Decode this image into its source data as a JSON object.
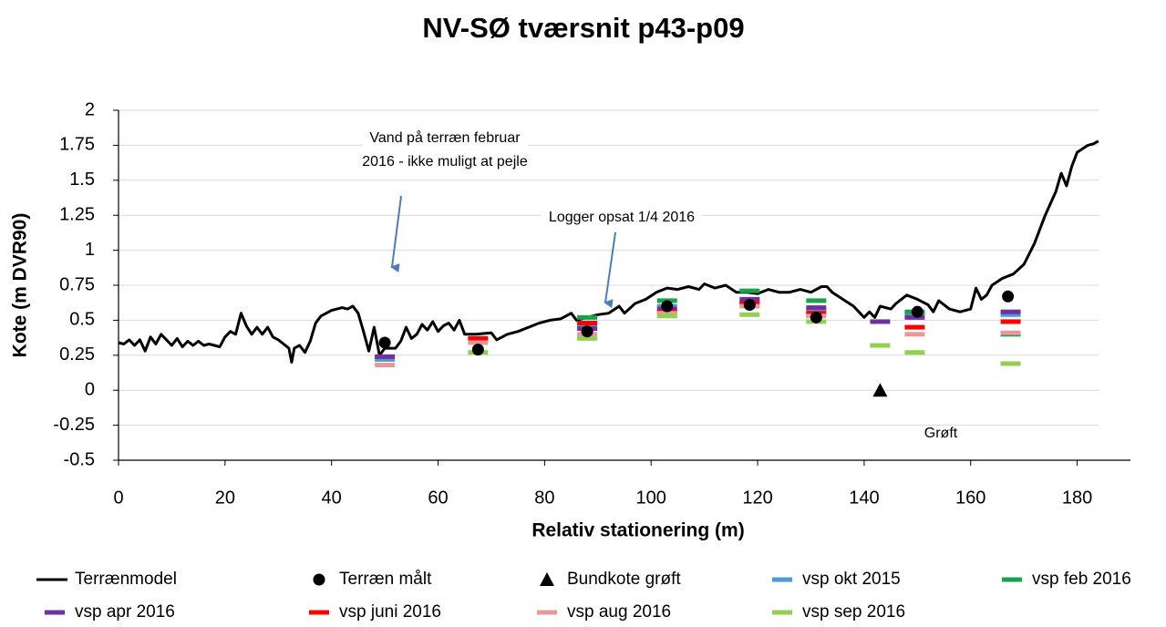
{
  "chart_data": {
    "type": "scatter",
    "title": "NV-SØ tværsnit p43-p09",
    "xlabel": "Relativ stationering (m)",
    "ylabel": "Kote (m DVR90)",
    "xlim": [
      0,
      190
    ],
    "ylim": [
      -0.5,
      2
    ],
    "xticks": [
      0,
      20,
      40,
      60,
      80,
      100,
      120,
      140,
      160,
      180
    ],
    "yticks": [
      -0.5,
      -0.25,
      0,
      0.25,
      0.5,
      0.75,
      1,
      1.25,
      1.5,
      1.75,
      2
    ],
    "grid": true,
    "legend": "bottom",
    "annotations": [
      {
        "text": [
          "Vand på terræn februar",
          "2016 - ikke muligt at pejle"
        ]
      },
      {
        "text": [
          "Logger opsat 1/4 2016"
        ]
      },
      {
        "text": [
          "Grøft"
        ]
      }
    ],
    "series": [
      {
        "name": "Terrænmodel",
        "color": "#000000",
        "marker": "line",
        "x": [
          0,
          1,
          2,
          3,
          4,
          5,
          6,
          7,
          8,
          9,
          10,
          11,
          12,
          13,
          14,
          15,
          16,
          17,
          18,
          19,
          20,
          21,
          22,
          23,
          24,
          25,
          26,
          27,
          28,
          29,
          30,
          31,
          32,
          32.5,
          33,
          34,
          35,
          36,
          37,
          38,
          40,
          42,
          43,
          44,
          45,
          46,
          47,
          48,
          49,
          50,
          52,
          53,
          54,
          55,
          56,
          57,
          58,
          59,
          60,
          61,
          62,
          63,
          64,
          65,
          67,
          70,
          71,
          73,
          75,
          77,
          79,
          81,
          83,
          85,
          86,
          88,
          90,
          92,
          94,
          95,
          97,
          99,
          101,
          103,
          105,
          107,
          109,
          110,
          112,
          114,
          116,
          118,
          120,
          122,
          124,
          126,
          128,
          130,
          132,
          133,
          134,
          136,
          138,
          140,
          141,
          142,
          143,
          145,
          146,
          148,
          150,
          152,
          153,
          154,
          156,
          158,
          160,
          161,
          162,
          163,
          164,
          166,
          168,
          170,
          172,
          174,
          176,
          177,
          178,
          179,
          180,
          182,
          183,
          184
        ],
        "values": [
          0.34,
          0.33,
          0.36,
          0.32,
          0.36,
          0.28,
          0.38,
          0.33,
          0.4,
          0.36,
          0.32,
          0.37,
          0.31,
          0.35,
          0.32,
          0.35,
          0.32,
          0.33,
          0.32,
          0.31,
          0.38,
          0.42,
          0.4,
          0.55,
          0.46,
          0.4,
          0.45,
          0.4,
          0.45,
          0.38,
          0.36,
          0.33,
          0.3,
          0.2,
          0.3,
          0.32,
          0.27,
          0.35,
          0.48,
          0.53,
          0.57,
          0.59,
          0.58,
          0.6,
          0.55,
          0.42,
          0.28,
          0.45,
          0.25,
          0.3,
          0.3,
          0.35,
          0.45,
          0.37,
          0.4,
          0.47,
          0.43,
          0.49,
          0.42,
          0.46,
          0.48,
          0.43,
          0.5,
          0.4,
          0.4,
          0.41,
          0.36,
          0.4,
          0.42,
          0.45,
          0.48,
          0.5,
          0.51,
          0.55,
          0.5,
          0.52,
          0.54,
          0.55,
          0.6,
          0.55,
          0.62,
          0.65,
          0.7,
          0.73,
          0.72,
          0.74,
          0.72,
          0.76,
          0.73,
          0.75,
          0.7,
          0.7,
          0.69,
          0.72,
          0.7,
          0.7,
          0.72,
          0.7,
          0.74,
          0.74,
          0.7,
          0.65,
          0.6,
          0.52,
          0.56,
          0.52,
          0.6,
          0.58,
          0.62,
          0.68,
          0.65,
          0.61,
          0.56,
          0.64,
          0.58,
          0.56,
          0.58,
          0.73,
          0.65,
          0.68,
          0.75,
          0.8,
          0.83,
          0.9,
          1.05,
          1.25,
          1.42,
          1.55,
          1.46,
          1.6,
          1.7,
          1.75,
          1.76,
          1.78
        ]
      },
      {
        "name": "Terræn målt",
        "color": "#000000",
        "marker": "circle",
        "x": [
          50,
          67.5,
          88,
          103,
          118.5,
          131,
          150,
          167
        ],
        "values": [
          0.34,
          0.29,
          0.42,
          0.6,
          0.61,
          0.52,
          0.56,
          0.67
        ]
      },
      {
        "name": "Bundkote grøft",
        "color": "#000000",
        "marker": "triangle",
        "x": [
          143
        ],
        "values": [
          0
        ]
      },
      {
        "name": "vsp okt 2015",
        "color": "#4f9ad6",
        "marker": "dash",
        "x": [
          50,
          88,
          103,
          118.5,
          131,
          149.5,
          167.5
        ],
        "values": [
          0.22,
          0.45,
          0.6,
          0.63,
          0.57,
          0.54,
          0.54
        ]
      },
      {
        "name": "vsp feb 2016",
        "color": "#17a34a",
        "marker": "dash",
        "x": [
          88,
          103,
          118.5,
          131,
          149.5,
          167.5
        ],
        "values": [
          0.52,
          0.64,
          0.71,
          0.64,
          0.56,
          0.4
        ]
      },
      {
        "name": "vsp apr 2016",
        "color": "#7030a0",
        "marker": "dash",
        "x": [
          50,
          88,
          103,
          118.5,
          131,
          143,
          149.5,
          167.5
        ],
        "values": [
          0.24,
          0.44,
          0.58,
          0.65,
          0.59,
          0.49,
          0.52,
          0.56
        ]
      },
      {
        "name": "vsp juni 2016",
        "color": "#ff0000",
        "marker": "dash",
        "x": [
          67.5,
          88,
          103,
          118.5,
          131,
          149.5,
          167.5
        ],
        "values": [
          0.37,
          0.48,
          0.56,
          0.62,
          0.55,
          0.45,
          0.49
        ]
      },
      {
        "name": "vsp aug 2016",
        "color": "#e6999a",
        "marker": "dash",
        "x": [
          50,
          67.5,
          88,
          103,
          118.5,
          131,
          149.5,
          167.5
        ],
        "values": [
          0.18,
          0.34,
          0.4,
          0.55,
          0.6,
          0.53,
          0.4,
          0.41
        ]
      },
      {
        "name": "vsp sep 2016",
        "color": "#92d050",
        "marker": "dash",
        "x": [
          67.5,
          88,
          103,
          118.5,
          131,
          143,
          149.5,
          167.5
        ],
        "values": [
          0.27,
          0.37,
          0.53,
          0.54,
          0.49,
          0.32,
          0.27,
          0.19
        ]
      }
    ]
  }
}
